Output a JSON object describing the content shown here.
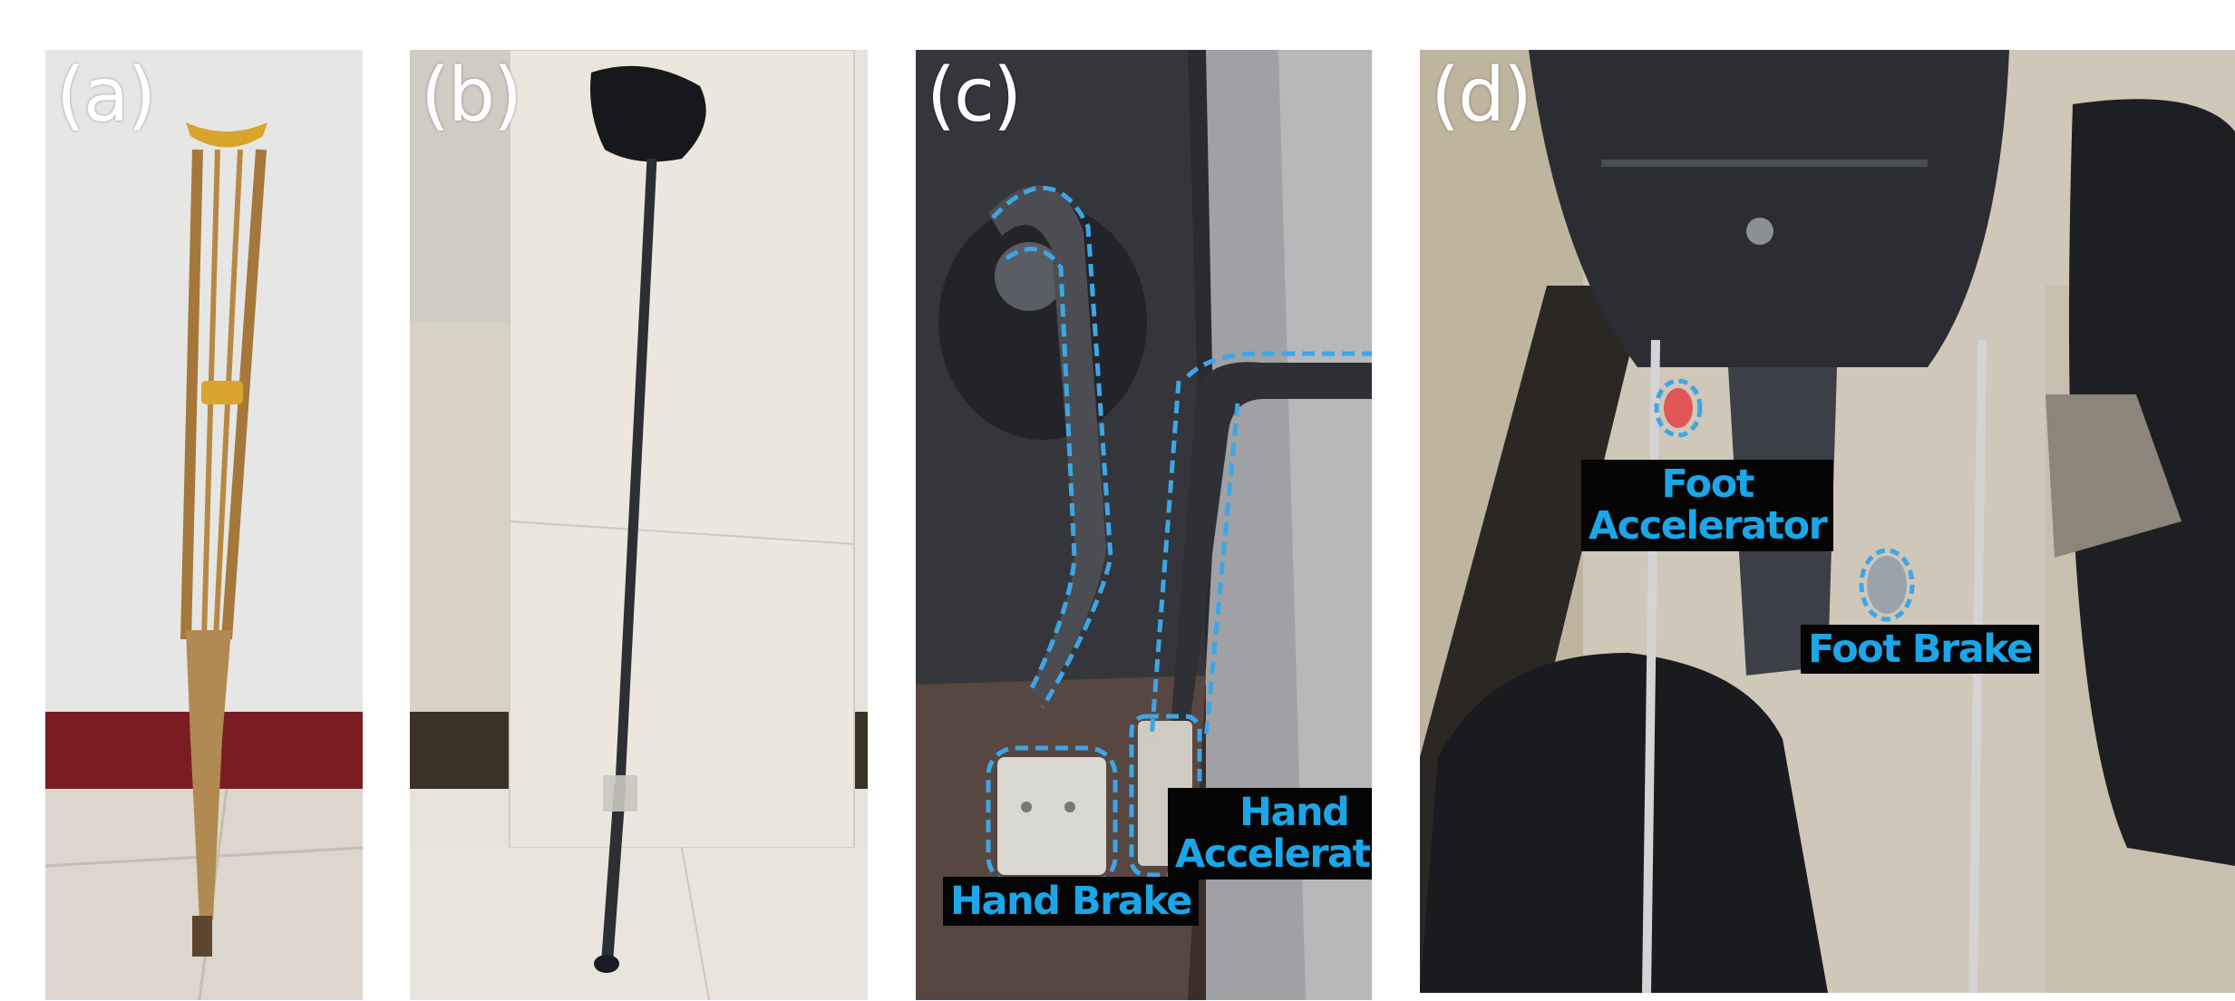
{
  "panels": {
    "a": {
      "letter": "(a)",
      "subject": "wooden-underarm-crutch"
    },
    "b": {
      "letter": "(b)",
      "subject": "walking-cane"
    },
    "c": {
      "letter": "(c)",
      "subject": "hand-controls",
      "labels": {
        "hand_brake": "Hand Brake",
        "hand_accel_1": "Hand",
        "hand_accel_2": "Accelerator"
      }
    },
    "d": {
      "letter": "(d)",
      "subject": "foot-pedals",
      "labels": {
        "foot_accel_1": "Foot",
        "foot_accel_2": "Accelerator",
        "foot_brake": "Foot Brake"
      }
    }
  },
  "colors": {
    "callout_text": "#1aa6e8",
    "callout_bg": "#050505",
    "outline": "#3ea6e6"
  }
}
